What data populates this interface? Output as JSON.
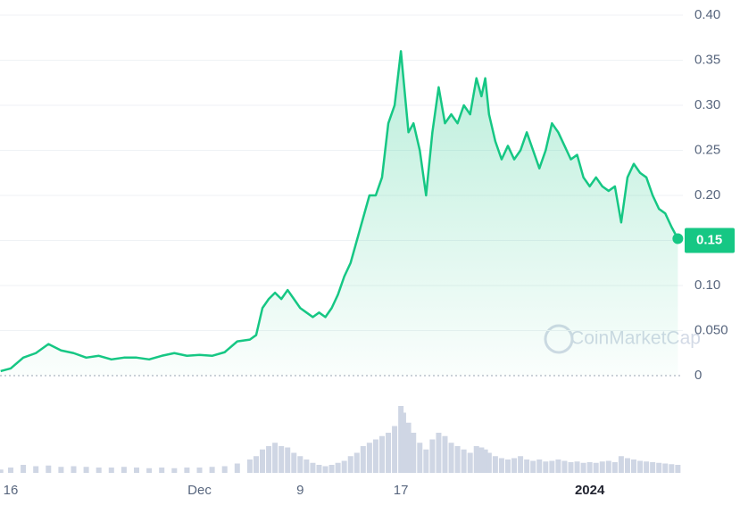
{
  "chart_data": {
    "type": "line",
    "watermark": "CoinMarketCap",
    "current_price": 0.15,
    "x": [
      -0.8,
      0,
      1,
      2,
      3,
      4,
      5,
      6,
      7,
      8,
      9,
      10,
      11,
      12,
      13,
      14,
      15,
      16,
      17,
      18,
      19,
      19.5,
      20,
      20.5,
      21,
      21.5,
      22,
      22.5,
      23,
      23.5,
      24,
      24.5,
      25,
      25.5,
      26,
      26.5,
      27,
      27.5,
      28,
      28.5,
      29,
      29.5,
      30,
      30.5,
      31,
      31.2,
      31.6,
      32,
      32.5,
      33,
      33.5,
      34,
      34.5,
      35,
      35.5,
      36,
      36.5,
      37,
      37.4,
      37.7,
      38,
      38.5,
      39,
      39.5,
      40,
      40.5,
      41,
      41.5,
      42,
      42.5,
      43,
      43.5,
      44,
      44.5,
      45,
      45.5,
      46,
      46.5,
      47,
      47.5,
      48,
      48.5,
      49,
      49.5,
      50,
      50.5,
      51,
      51.5,
      52,
      52.5,
      53
    ],
    "series": [
      {
        "name": "Price",
        "color": "#16c784",
        "values": [
          0.005,
          0.008,
          0.02,
          0.025,
          0.035,
          0.028,
          0.025,
          0.02,
          0.022,
          0.018,
          0.02,
          0.02,
          0.018,
          0.022,
          0.025,
          0.022,
          0.023,
          0.022,
          0.026,
          0.038,
          0.04,
          0.045,
          0.075,
          0.085,
          0.092,
          0.085,
          0.095,
          0.085,
          0.075,
          0.07,
          0.065,
          0.07,
          0.065,
          0.075,
          0.09,
          0.11,
          0.125,
          0.15,
          0.175,
          0.2,
          0.2,
          0.22,
          0.28,
          0.3,
          0.36,
          0.33,
          0.27,
          0.28,
          0.25,
          0.2,
          0.27,
          0.32,
          0.28,
          0.29,
          0.28,
          0.3,
          0.29,
          0.33,
          0.31,
          0.33,
          0.29,
          0.26,
          0.24,
          0.255,
          0.24,
          0.25,
          0.27,
          0.25,
          0.23,
          0.25,
          0.28,
          0.27,
          0.255,
          0.24,
          0.245,
          0.22,
          0.21,
          0.22,
          0.21,
          0.205,
          0.21,
          0.17,
          0.22,
          0.235,
          0.225,
          0.22,
          0.2,
          0.185,
          0.18,
          0.165,
          0.152
        ]
      },
      {
        "name": "Volume",
        "color": "#cfd6e4",
        "axis": "y2",
        "values": [
          5,
          8,
          12,
          10,
          11,
          9,
          10,
          9,
          8,
          8,
          9,
          8,
          7,
          8,
          7,
          8,
          8,
          9,
          10,
          14,
          20,
          25,
          35,
          40,
          45,
          40,
          38,
          30,
          25,
          20,
          15,
          12,
          10,
          12,
          15,
          18,
          25,
          30,
          40,
          45,
          50,
          55,
          60,
          70,
          100,
          90,
          75,
          60,
          45,
          35,
          50,
          60,
          55,
          45,
          40,
          35,
          30,
          40,
          38,
          35,
          30,
          25,
          22,
          20,
          22,
          25,
          20,
          18,
          20,
          17,
          18,
          20,
          18,
          16,
          17,
          15,
          16,
          15,
          17,
          18,
          16,
          25,
          22,
          20,
          18,
          17,
          16,
          15,
          14,
          13,
          12
        ]
      }
    ],
    "xlim": [
      -0.85,
      53.4
    ],
    "xticks": [
      {
        "value": 0,
        "label": "16"
      },
      {
        "value": 15,
        "label": "Dec"
      },
      {
        "value": 23,
        "label": "9"
      },
      {
        "value": 31,
        "label": "17"
      },
      {
        "value": 46,
        "label": "2024"
      }
    ],
    "ylim": [
      0,
      0.4
    ],
    "yticks": [
      0,
      {
        "value": 0.05,
        "label": "0.050"
      },
      {
        "value": 0.1,
        "label": "0.10"
      },
      0.15,
      {
        "value": 0.2,
        "label": "0.20"
      },
      0.25,
      {
        "value": 0.3,
        "label": "0.30"
      },
      0.35,
      {
        "value": 0.4,
        "label": "0.40"
      }
    ],
    "y2lim": [
      0,
      100
    ],
    "grid": true
  }
}
